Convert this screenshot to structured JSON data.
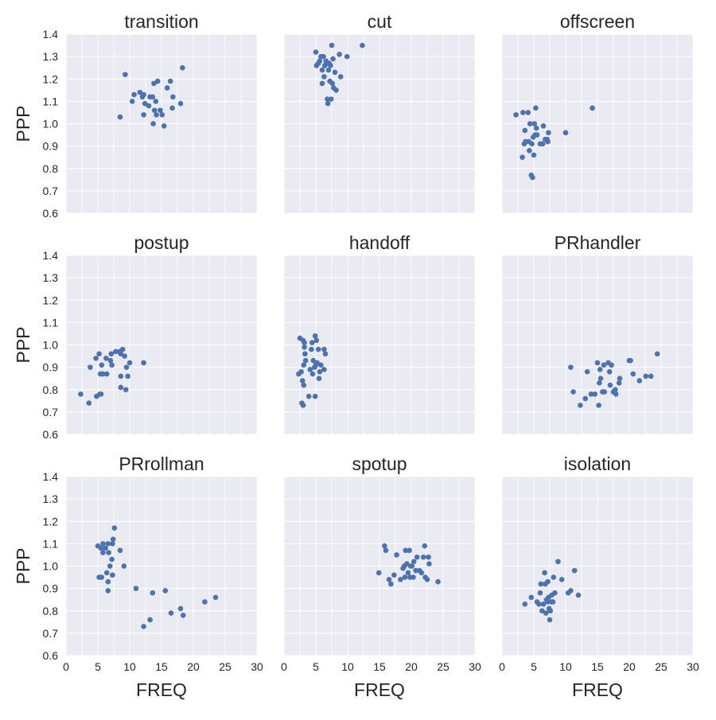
{
  "chart_data": {
    "type": "scatter",
    "layout": "3x3 facet grid, shared axes",
    "xlabel": "FREQ",
    "ylabel": "PPP",
    "xlim": [
      0,
      30
    ],
    "ylim": [
      0.6,
      1.4
    ],
    "xticks": [
      "0",
      "5",
      "10",
      "15",
      "20",
      "25",
      "30"
    ],
    "yticks": [
      "0.6",
      "0.7",
      "0.8",
      "0.9",
      "1.0",
      "1.1",
      "1.2",
      "1.3",
      "1.4"
    ],
    "grid": true,
    "marker_color": "#4c72b0",
    "panel_color": "#eaeaf2",
    "panels": [
      {
        "title": "transition",
        "points": [
          [
            8.5,
            1.03
          ],
          [
            9.3,
            1.22
          ],
          [
            10.4,
            1.1
          ],
          [
            10.7,
            1.13
          ],
          [
            11.6,
            1.14
          ],
          [
            12.0,
            1.12
          ],
          [
            12.2,
            1.13
          ],
          [
            12.2,
            1.04
          ],
          [
            12.4,
            1.09
          ],
          [
            13.0,
            1.08
          ],
          [
            13.2,
            1.12
          ],
          [
            13.6,
            1.12
          ],
          [
            13.7,
            1.0
          ],
          [
            13.8,
            1.18
          ],
          [
            13.9,
            1.06
          ],
          [
            14.1,
            1.1
          ],
          [
            14.2,
            1.04
          ],
          [
            14.4,
            1.19
          ],
          [
            14.8,
            1.06
          ],
          [
            15.1,
            1.04
          ],
          [
            15.4,
            0.99
          ],
          [
            15.9,
            1.16
          ],
          [
            16.4,
            1.19
          ],
          [
            16.7,
            1.07
          ],
          [
            16.8,
            1.12
          ],
          [
            18.0,
            1.09
          ],
          [
            18.3,
            1.25
          ]
        ]
      },
      {
        "title": "cut",
        "points": [
          [
            5.0,
            1.32
          ],
          [
            5.1,
            1.26
          ],
          [
            5.4,
            1.27
          ],
          [
            5.6,
            1.28
          ],
          [
            5.8,
            1.3
          ],
          [
            6.0,
            1.24
          ],
          [
            6.0,
            1.18
          ],
          [
            6.2,
            1.3
          ],
          [
            6.3,
            1.21
          ],
          [
            6.4,
            1.26
          ],
          [
            6.6,
            1.28
          ],
          [
            6.7,
            1.27
          ],
          [
            6.8,
            1.11
          ],
          [
            6.9,
            1.09
          ],
          [
            7.0,
            1.24
          ],
          [
            7.1,
            1.27
          ],
          [
            7.2,
            1.19
          ],
          [
            7.3,
            1.26
          ],
          [
            7.4,
            1.11
          ],
          [
            7.5,
            1.35
          ],
          [
            7.6,
            1.18
          ],
          [
            7.7,
            1.29
          ],
          [
            7.8,
            1.16
          ],
          [
            8.0,
            1.23
          ],
          [
            8.2,
            1.15
          ],
          [
            8.7,
            1.31
          ],
          [
            8.9,
            1.21
          ],
          [
            9.9,
            1.3
          ],
          [
            12.3,
            1.35
          ]
        ]
      },
      {
        "title": "offscreen",
        "points": [
          [
            2.2,
            1.04
          ],
          [
            3.2,
            0.85
          ],
          [
            3.3,
            1.05
          ],
          [
            3.5,
            0.91
          ],
          [
            3.6,
            0.97
          ],
          [
            3.7,
            0.92
          ],
          [
            4.1,
            1.05
          ],
          [
            4.2,
            0.92
          ],
          [
            4.3,
            0.88
          ],
          [
            4.4,
            1.0
          ],
          [
            4.6,
            0.77
          ],
          [
            4.7,
            0.91
          ],
          [
            4.8,
            0.76
          ],
          [
            4.9,
            0.94
          ],
          [
            5.0,
            0.86
          ],
          [
            5.1,
            1.0
          ],
          [
            5.2,
            0.95
          ],
          [
            5.3,
            1.07
          ],
          [
            5.4,
            0.98
          ],
          [
            5.5,
            0.95
          ],
          [
            6.0,
            0.91
          ],
          [
            6.4,
            0.91
          ],
          [
            6.5,
            0.99
          ],
          [
            6.8,
            0.93
          ],
          [
            7.1,
            0.93
          ],
          [
            7.2,
            0.92
          ],
          [
            7.3,
            0.96
          ],
          [
            10.0,
            0.96
          ],
          [
            14.2,
            1.07
          ]
        ]
      },
      {
        "title": "postup",
        "points": [
          [
            2.3,
            0.78
          ],
          [
            3.6,
            0.74
          ],
          [
            3.8,
            0.9
          ],
          [
            4.7,
            0.94
          ],
          [
            4.8,
            0.77
          ],
          [
            5.2,
            0.96
          ],
          [
            5.3,
            0.78
          ],
          [
            5.4,
            0.87
          ],
          [
            5.5,
            0.78
          ],
          [
            5.6,
            0.91
          ],
          [
            5.8,
            0.87
          ],
          [
            6.3,
            0.94
          ],
          [
            6.4,
            0.87
          ],
          [
            7.0,
            0.93
          ],
          [
            7.1,
            0.96
          ],
          [
            7.2,
            0.91
          ],
          [
            7.8,
            0.97
          ],
          [
            8.4,
            0.97
          ],
          [
            8.6,
            0.96
          ],
          [
            8.6,
            0.81
          ],
          [
            8.6,
            0.86
          ],
          [
            8.9,
            0.98
          ],
          [
            9.2,
            0.95
          ],
          [
            9.4,
            0.8
          ],
          [
            9.5,
            0.9
          ],
          [
            9.7,
            0.86
          ],
          [
            10.0,
            0.92
          ],
          [
            12.2,
            0.92
          ]
        ]
      },
      {
        "title": "handoff",
        "points": [
          [
            2.3,
            0.87
          ],
          [
            2.5,
            1.03
          ],
          [
            2.7,
            0.88
          ],
          [
            2.8,
            0.74
          ],
          [
            2.9,
            0.84
          ],
          [
            3.0,
            0.73
          ],
          [
            3.0,
            1.02
          ],
          [
            3.1,
            0.82
          ],
          [
            3.1,
            0.91
          ],
          [
            3.2,
            0.99
          ],
          [
            3.2,
            1.01
          ],
          [
            3.3,
            0.96
          ],
          [
            3.4,
            0.93
          ],
          [
            3.9,
            0.77
          ],
          [
            4.1,
            0.89
          ],
          [
            4.3,
            0.98
          ],
          [
            4.4,
            1.01
          ],
          [
            4.5,
            0.87
          ],
          [
            4.6,
            0.93
          ],
          [
            4.8,
            0.9
          ],
          [
            4.9,
            0.77
          ],
          [
            4.9,
            1.04
          ],
          [
            5.0,
            0.91
          ],
          [
            5.1,
            1.02
          ],
          [
            5.2,
            0.92
          ],
          [
            5.4,
            0.98
          ],
          [
            5.5,
            0.85
          ],
          [
            5.6,
            0.88
          ],
          [
            5.8,
            0.91
          ],
          [
            6.3,
            0.98
          ],
          [
            6.3,
            0.89
          ],
          [
            6.5,
            0.96
          ]
        ]
      },
      {
        "title": "PRhandler",
        "points": [
          [
            10.8,
            0.9
          ],
          [
            11.2,
            0.79
          ],
          [
            12.3,
            0.73
          ],
          [
            13.1,
            0.76
          ],
          [
            13.4,
            0.88
          ],
          [
            14.0,
            0.78
          ],
          [
            14.6,
            0.78
          ],
          [
            15.0,
            0.92
          ],
          [
            15.2,
            0.73
          ],
          [
            15.3,
            0.83
          ],
          [
            15.4,
            0.89
          ],
          [
            15.5,
            0.85
          ],
          [
            15.8,
            0.79
          ],
          [
            16.0,
            0.91
          ],
          [
            16.1,
            0.79
          ],
          [
            16.7,
            0.92
          ],
          [
            16.9,
            0.88
          ],
          [
            17.0,
            0.82
          ],
          [
            17.2,
            0.91
          ],
          [
            17.5,
            0.79
          ],
          [
            17.8,
            0.8
          ],
          [
            17.9,
            0.78
          ],
          [
            18.4,
            0.83
          ],
          [
            18.5,
            0.85
          ],
          [
            20.0,
            0.93
          ],
          [
            20.2,
            0.93
          ],
          [
            20.6,
            0.87
          ],
          [
            21.6,
            0.84
          ],
          [
            22.6,
            0.86
          ],
          [
            23.4,
            0.86
          ],
          [
            24.4,
            0.96
          ]
        ]
      },
      {
        "title": "PRrollman",
        "points": [
          [
            5.0,
            1.09
          ],
          [
            5.2,
            0.95
          ],
          [
            5.5,
            1.08
          ],
          [
            5.6,
            0.95
          ],
          [
            5.8,
            1.1
          ],
          [
            5.8,
            1.06
          ],
          [
            6.2,
            1.08
          ],
          [
            6.4,
            0.97
          ],
          [
            6.6,
            0.93
          ],
          [
            6.6,
            1.1
          ],
          [
            6.6,
            0.89
          ],
          [
            6.7,
            1.06
          ],
          [
            6.9,
            1.0
          ],
          [
            7.2,
            1.03
          ],
          [
            7.3,
            0.96
          ],
          [
            7.3,
            1.1
          ],
          [
            7.4,
            1.12
          ],
          [
            7.6,
            1.17
          ],
          [
            8.5,
            1.07
          ],
          [
            9.1,
            1.0
          ],
          [
            11.0,
            0.9
          ],
          [
            12.2,
            0.73
          ],
          [
            13.2,
            0.76
          ],
          [
            13.6,
            0.88
          ],
          [
            15.6,
            0.89
          ],
          [
            16.5,
            0.79
          ],
          [
            18.0,
            0.81
          ],
          [
            18.4,
            0.78
          ],
          [
            21.8,
            0.84
          ],
          [
            23.5,
            0.86
          ]
        ]
      },
      {
        "title": "spotup",
        "points": [
          [
            14.9,
            0.97
          ],
          [
            15.8,
            1.09
          ],
          [
            16.0,
            1.07
          ],
          [
            16.5,
            0.94
          ],
          [
            16.8,
            0.92
          ],
          [
            17.3,
            0.96
          ],
          [
            17.7,
            1.05
          ],
          [
            18.3,
            0.94
          ],
          [
            18.7,
            0.99
          ],
          [
            18.9,
            1.0
          ],
          [
            19.0,
            0.95
          ],
          [
            19.1,
            1.07
          ],
          [
            19.3,
            1.01
          ],
          [
            19.5,
            0.97
          ],
          [
            19.7,
            1.07
          ],
          [
            19.8,
            0.95
          ],
          [
            19.9,
            1.0
          ],
          [
            20.1,
            1.0
          ],
          [
            20.3,
            0.95
          ],
          [
            20.4,
            1.02
          ],
          [
            20.7,
            0.98
          ],
          [
            20.9,
            1.04
          ],
          [
            21.3,
            0.98
          ],
          [
            21.6,
            0.97
          ],
          [
            21.9,
            1.04
          ],
          [
            22.1,
            1.09
          ],
          [
            22.2,
            0.95
          ],
          [
            22.5,
            0.94
          ],
          [
            22.7,
            1.04
          ],
          [
            22.8,
            1.01
          ],
          [
            24.2,
            0.93
          ]
        ]
      },
      {
        "title": "isolation",
        "points": [
          [
            3.6,
            0.83
          ],
          [
            4.6,
            0.86
          ],
          [
            5.5,
            0.84
          ],
          [
            5.8,
            0.83
          ],
          [
            6.0,
            0.88
          ],
          [
            6.1,
            0.92
          ],
          [
            6.3,
            0.8
          ],
          [
            6.5,
            0.83
          ],
          [
            6.7,
            0.97
          ],
          [
            6.8,
            0.92
          ],
          [
            6.9,
            0.79
          ],
          [
            7.0,
            0.85
          ],
          [
            7.2,
            0.84
          ],
          [
            7.2,
            0.93
          ],
          [
            7.3,
            0.86
          ],
          [
            7.4,
            0.81
          ],
          [
            7.5,
            0.76
          ],
          [
            7.6,
            0.8
          ],
          [
            7.8,
            0.84
          ],
          [
            7.8,
            0.87
          ],
          [
            8.0,
            0.84
          ],
          [
            8.1,
            0.95
          ],
          [
            8.3,
            0.88
          ],
          [
            8.8,
            1.02
          ],
          [
            9.4,
            0.94
          ],
          [
            10.4,
            0.88
          ],
          [
            10.8,
            0.89
          ],
          [
            11.4,
            0.98
          ],
          [
            12.0,
            0.87
          ]
        ]
      }
    ]
  }
}
